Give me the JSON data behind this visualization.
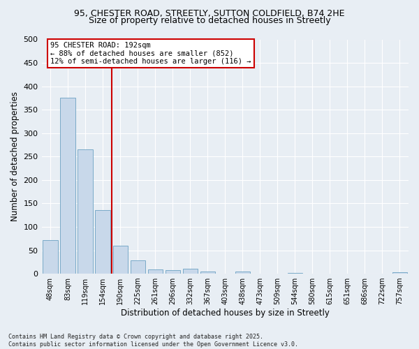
{
  "title_line1": "95, CHESTER ROAD, STREETLY, SUTTON COLDFIELD, B74 2HE",
  "title_line2": "Size of property relative to detached houses in Streetly",
  "xlabel": "Distribution of detached houses by size in Streetly",
  "ylabel": "Number of detached properties",
  "categories": [
    "48sqm",
    "83sqm",
    "119sqm",
    "154sqm",
    "190sqm",
    "225sqm",
    "261sqm",
    "296sqm",
    "332sqm",
    "367sqm",
    "403sqm",
    "438sqm",
    "473sqm",
    "509sqm",
    "544sqm",
    "580sqm",
    "615sqm",
    "651sqm",
    "686sqm",
    "722sqm",
    "757sqm"
  ],
  "values": [
    72,
    375,
    265,
    135,
    60,
    28,
    9,
    8,
    10,
    5,
    0,
    5,
    0,
    0,
    1,
    0,
    0,
    0,
    0,
    0,
    3
  ],
  "bar_color": "#c8d8ea",
  "bar_edge_color": "#7aaac8",
  "vline_color": "#cc0000",
  "vline_x_index": 4,
  "annotation_text": "95 CHESTER ROAD: 192sqm\n← 88% of detached houses are smaller (852)\n12% of semi-detached houses are larger (116) →",
  "annotation_box_color": "#ffffff",
  "annotation_box_edge": "#cc0000",
  "ylim": [
    0,
    500
  ],
  "yticks": [
    0,
    50,
    100,
    150,
    200,
    250,
    300,
    350,
    400,
    450,
    500
  ],
  "background_color": "#e8eef4",
  "grid_color": "#ffffff",
  "title_fontsize": 9,
  "footnote": "Contains HM Land Registry data © Crown copyright and database right 2025.\nContains public sector information licensed under the Open Government Licence v3.0."
}
